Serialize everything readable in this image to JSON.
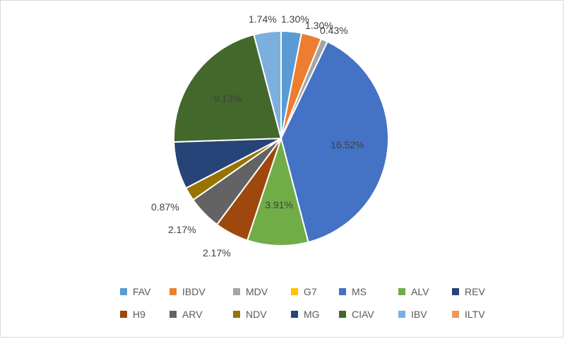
{
  "chart_data": {
    "type": "pie",
    "title": "",
    "start_angle_deg": 0,
    "slices": [
      {
        "name": "FAV",
        "value": 1.3,
        "label": "1.30%",
        "color": "#5B9BD5"
      },
      {
        "name": "IBDV",
        "value": 1.3,
        "label": "1.30%",
        "color": "#ED7D31"
      },
      {
        "name": "MDV",
        "value": 0.43,
        "label": "0.43%",
        "color": "#A5A5A5"
      },
      {
        "name": "G7",
        "value": 0.0,
        "label": "",
        "color": "#FFC000"
      },
      {
        "name": "MS",
        "value": 16.52,
        "label": "16.52%",
        "color": "#4472C4"
      },
      {
        "name": "ALV",
        "value": 3.91,
        "label": "3.91%",
        "color": "#70AD47"
      },
      {
        "name": "REV",
        "value": 0.0,
        "label": "",
        "color": "#264478"
      },
      {
        "name": "H9",
        "value": 2.17,
        "label": "2.17%",
        "color": "#9E480E"
      },
      {
        "name": "ARV",
        "value": 2.17,
        "label": "2.17%",
        "color": "#636363"
      },
      {
        "name": "NDV",
        "value": 0.87,
        "label": "0.87%",
        "color": "#997300"
      },
      {
        "name": "MG",
        "value": 3.04,
        "label": "",
        "color": "#264478"
      },
      {
        "name": "CIAV",
        "value": 9.13,
        "label": "9.13%",
        "color": "#43682B"
      },
      {
        "name": "IBV",
        "value": 1.74,
        "label": "1.74%",
        "color": "#7CAFDD"
      },
      {
        "name": "ILTV",
        "value": 0.0,
        "label": "",
        "color": "#F1975A"
      }
    ],
    "legend": {
      "placement": "bottom",
      "rows": [
        [
          "FAV",
          "IBDV",
          "MDV",
          "G7",
          "MS",
          "ALV",
          "REV"
        ],
        [
          "H9",
          "ARV",
          "NDV",
          "MG",
          "CIAV",
          "IBV",
          "ILTV"
        ]
      ]
    }
  }
}
